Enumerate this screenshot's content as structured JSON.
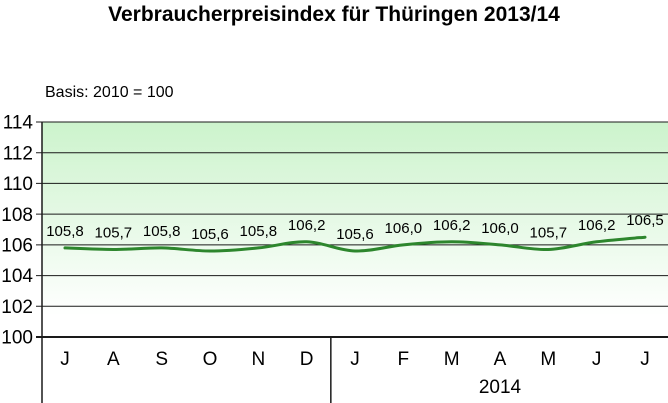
{
  "title": "Verbraucherpreisindex für Thüringen 2013/14",
  "subtitle": "Basis: 2010 = 100",
  "chart_data": {
    "type": "line",
    "title": "Verbraucherpreisindex für Thüringen 2013/14",
    "subtitle": "Basis: 2010 = 100",
    "categories": [
      "J",
      "A",
      "S",
      "O",
      "N",
      "D",
      "J",
      "F",
      "M",
      "A",
      "M",
      "J",
      "J"
    ],
    "values": [
      105.8,
      105.7,
      105.8,
      105.6,
      105.8,
      106.2,
      105.6,
      106.0,
      106.2,
      106.0,
      105.7,
      106.2,
      106.5
    ],
    "point_labels": [
      "105,8",
      "105,7",
      "105,8",
      "105,6",
      "105,8",
      "106,2",
      "105,6",
      "106,0",
      "106,2",
      "106,0",
      "105,7",
      "106,2",
      "106,5"
    ],
    "ylim": [
      100,
      114
    ],
    "yticks": [
      100,
      102,
      104,
      106,
      108,
      110,
      112,
      114
    ],
    "grid": "horizontal",
    "legend": "none",
    "smoothed_line": true,
    "group_labels": [
      {
        "label": "2014",
        "start_index": 6,
        "end_index": 12
      }
    ],
    "colors": {
      "line": "#2d862d",
      "plot_bg_top": "#ccf3cc",
      "plot_bg_bottom": "#ffffff",
      "grid": "#1a1a1a",
      "text": "#000000"
    }
  }
}
